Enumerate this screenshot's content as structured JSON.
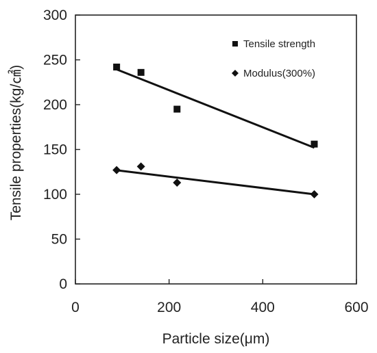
{
  "chart_data": {
    "type": "scatter",
    "title": "",
    "xlabel": "Particle size(μm)",
    "ylabel": "Tensile properties(kg/㎠)",
    "xlim": [
      0,
      600
    ],
    "ylim": [
      0,
      300
    ],
    "xticks": [
      0,
      200,
      400,
      600
    ],
    "yticks": [
      0,
      50,
      100,
      150,
      200,
      250,
      300
    ],
    "grid": false,
    "legend_position": "top-right",
    "series": [
      {
        "name": "Tensile strength",
        "marker": "square",
        "color": "#111111",
        "x": [
          88,
          140,
          217,
          510
        ],
        "y": [
          242,
          236,
          195,
          156
        ],
        "trendline": {
          "x": [
            85,
            510
          ],
          "y": [
            240,
            152
          ]
        }
      },
      {
        "name": "Modulus(300%)",
        "marker": "diamond",
        "color": "#111111",
        "x": [
          88,
          140,
          217,
          510
        ],
        "y": [
          127,
          131,
          113,
          100
        ],
        "trendline": {
          "x": [
            85,
            510
          ],
          "y": [
            127,
            100
          ]
        }
      }
    ]
  }
}
